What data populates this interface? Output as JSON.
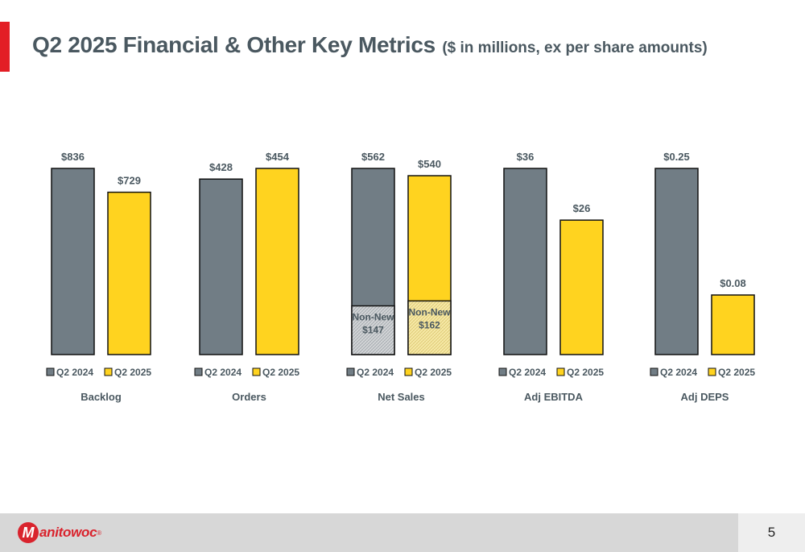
{
  "header": {
    "title": "Q2 2025 Financial & Other Key Metrics",
    "subtitle": "($ in millions, ex per share amounts)"
  },
  "colors": {
    "accent_red": "#e31e25",
    "q2_2024": "#717d85",
    "q2_2025": "#ffd31f",
    "hatch_2024": "#d4d6d8",
    "hatch_2025": "#f7eaa8",
    "label_text": "#4a5860"
  },
  "footer": {
    "logo_text": "anitowoc",
    "logo_mark": "M",
    "logo_reg": "®",
    "page_number": "5"
  },
  "chart_data": [
    {
      "type": "bar",
      "title": "Backlog",
      "categories": [
        "Q2 2024",
        "Q2 2025"
      ],
      "values": [
        836,
        729
      ],
      "value_labels": [
        "$836",
        "$729"
      ],
      "legend": [
        "Q2 2024",
        "Q2 2025"
      ]
    },
    {
      "type": "bar",
      "title": "Orders",
      "categories": [
        "Q2 2024",
        "Q2 2025"
      ],
      "values": [
        428,
        454
      ],
      "value_labels": [
        "$428",
        "$454"
      ],
      "legend": [
        "Q2 2024",
        "Q2 2025"
      ]
    },
    {
      "type": "bar",
      "title": "Net Sales",
      "categories": [
        "Q2 2024",
        "Q2 2025"
      ],
      "values": [
        562,
        540
      ],
      "value_labels": [
        "$562",
        "$540"
      ],
      "segments": [
        {
          "label": "Non-New",
          "value_label": "$147",
          "value": 147
        },
        {
          "label": "Non-New",
          "value_label": "$162",
          "value": 162
        }
      ],
      "legend": [
        "Q2 2024",
        "Q2 2025"
      ]
    },
    {
      "type": "bar",
      "title": "Adj EBITDA",
      "categories": [
        "Q2 2024",
        "Q2 2025"
      ],
      "values": [
        36,
        26
      ],
      "value_labels": [
        "$36",
        "$26"
      ],
      "legend": [
        "Q2 2024",
        "Q2 2025"
      ]
    },
    {
      "type": "bar",
      "title": "Adj DEPS",
      "categories": [
        "Q2 2024",
        "Q2 2025"
      ],
      "values": [
        0.25,
        0.08
      ],
      "value_labels": [
        "$0.25",
        "$0.08"
      ],
      "legend": [
        "Q2 2024",
        "Q2 2025"
      ]
    }
  ]
}
